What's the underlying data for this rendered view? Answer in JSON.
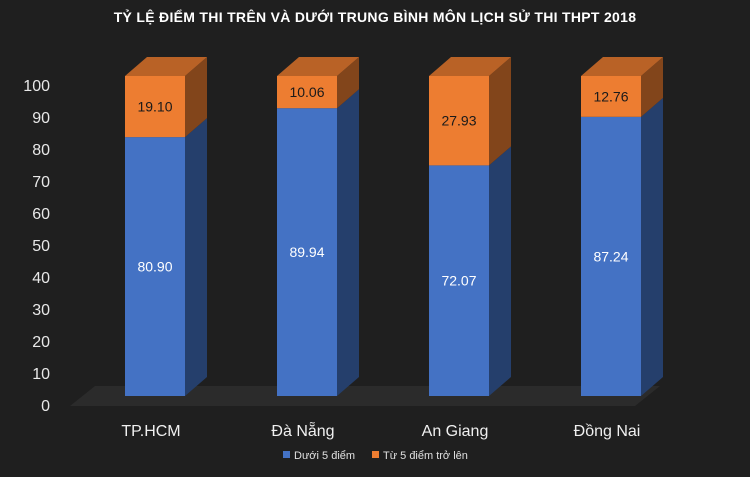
{
  "chart_data": {
    "type": "bar",
    "stacked": true,
    "style": "3d",
    "title": "TỶ LỆ ĐIỂM THI TRÊN VÀ DƯỚI TRUNG BÌNH MÔN LỊCH SỬ THI THPT 2018",
    "categories": [
      "TP.HCM",
      "Đà Nẵng",
      "An Giang",
      "Đồng Nai"
    ],
    "series": [
      {
        "name": "Dưới 5 điểm",
        "values": [
          80.9,
          89.94,
          72.07,
          87.24
        ],
        "labels": [
          "80.90",
          "89.94",
          "72.07",
          "87.24"
        ],
        "color": "#4472c4"
      },
      {
        "name": "Từ 5 điểm trở lên",
        "values": [
          19.1,
          10.06,
          27.93,
          12.76
        ],
        "labels": [
          "19.10",
          "10.06",
          "27.93",
          "12.76"
        ],
        "color": "#ed7d31"
      }
    ],
    "yticks": [
      "0",
      "10",
      "20",
      "30",
      "40",
      "50",
      "60",
      "70",
      "80",
      "90",
      "100"
    ],
    "ylim": [
      0,
      100
    ],
    "grid": false,
    "legend": "bottom",
    "background": "#1f1f1f"
  }
}
